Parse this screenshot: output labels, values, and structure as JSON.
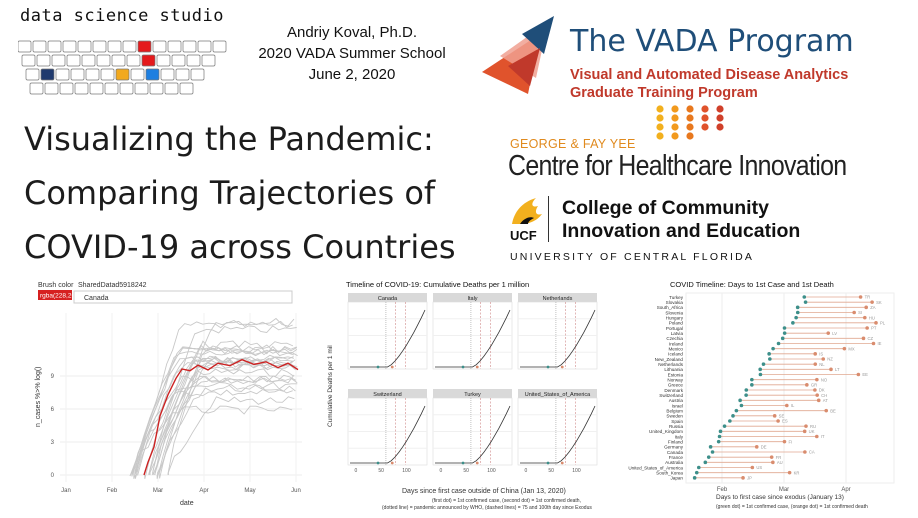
{
  "header": {
    "studio": "data science studio",
    "author": [
      "Andriy Koval, Ph.D.",
      "2020 VADA Summer School",
      "June 2, 2020"
    ],
    "title_lines": [
      "Visualizing the Pandemic:",
      "Comparing Trajectories of",
      "COVID-19 across Countries"
    ]
  },
  "logos": {
    "vada_name": "The VADA Program",
    "vada_sub": [
      "Visual and Automated Disease Analytics",
      "Graduate Training Program"
    ],
    "gfy": "GEORGE & FAY YEE",
    "chi": "Centre for Healthcare Innovation",
    "ccie": [
      "College of Community",
      "Innovation and Education"
    ],
    "ucf_mark": "UCF",
    "ucf_full": "UNIVERSITY OF CENTRAL FLORIDA"
  },
  "colors": {
    "vada_blue": "#1f4e79",
    "vada_red": "#c0392b",
    "gfy_orange": "#e08a1e",
    "highlight_red": "#cc2222",
    "grey_lines": "#c8c8c8",
    "teal_dot": "#3d8f8a",
    "salmon_dot": "#d98c6e"
  },
  "panel1": {
    "brush_label": "Brush color",
    "shared_label": "SharedDatad5918242",
    "color_chip": "rgba(228,26",
    "country_value": "Canada",
    "ylabel": "n_cases %>% log()",
    "xlabel": "date",
    "yticks": [
      "0",
      "3",
      "6",
      "9"
    ],
    "xticks": [
      "Jan",
      "Feb",
      "Mar",
      "Apr",
      "May",
      "Jun"
    ]
  },
  "panel2": {
    "title": "Timeline of COVID-19: Cumulative Deaths per 1 million",
    "ylabel": "Cumulative Deaths per 1 mil",
    "xlabel": "Days since first case outside of China (Jan 13, 2020)",
    "captions": [
      "(first dot) = 1st confirmed case, (second dot) = 1st confirmed death,",
      "(dotted line) = pandemic announced by WHO, (dashed lines) = 75 and 100th day since Exodus"
    ],
    "facets": [
      "Canada",
      "Italy",
      "Netherlands",
      "Switzerland",
      "Turkey",
      "United_States_of_America"
    ],
    "xticks": [
      "0",
      "50",
      "100"
    ]
  },
  "panel3": {
    "title": "COVID Timeline: Days to 1st Case and 1st Death",
    "xlabel": "Days to first case since exodus (January 13)",
    "caption": "(green dot) = 1st confirmed case, (orange dot) = 1st confirmed death",
    "xticks": [
      "Feb",
      "Mar",
      "Apr"
    ],
    "countries": [
      "Turkey",
      "Slovakia",
      "South_Africa",
      "Slovenia",
      "Hungary",
      "Poland",
      "Portugal",
      "Latvia",
      "Czechia",
      "Ireland",
      "Mexico",
      "Iceland",
      "New_Zealand",
      "Netherlands",
      "Lithuania",
      "Estonia",
      "Norway",
      "Greece",
      "Denmark",
      "Switzerland",
      "Austria",
      "Israel",
      "Belgium",
      "Sweden",
      "Spain",
      "Russia",
      "United_Kingdom",
      "Italy",
      "Finland",
      "Germany",
      "Canada",
      "France",
      "Australia",
      "United_States_of_America",
      "South_Korea",
      "Japan"
    ],
    "codes": [
      "TR",
      "SK",
      "ZA",
      "SI",
      "HU",
      "PL",
      "PT",
      "LV",
      "CZ",
      "IE",
      "MX",
      "IS",
      "NZ",
      "NL",
      "LT",
      "EE",
      "NO",
      "GR",
      "DK",
      "CH",
      "AT",
      "IL",
      "BE",
      "SE",
      "ES",
      "RU",
      "UK",
      "IT",
      "FI",
      "DE",
      "CA",
      "FR",
      "AU",
      "US",
      "KR",
      "JP"
    ]
  }
}
